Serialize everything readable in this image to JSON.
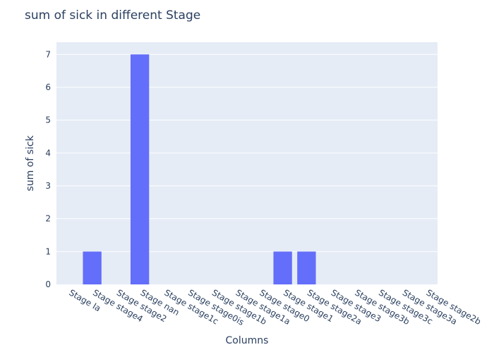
{
  "chart_data": {
    "type": "bar",
    "title": "sum of sick in different Stage",
    "xlabel": "Columns",
    "ylabel": "sum of sick",
    "categories": [
      "Stage Ia",
      "Stage stage4",
      "Stage stage2",
      "Stage nan",
      "Stage stage1c",
      "Stage stage0is",
      "Stage stage1b",
      "Stage stage1a",
      "Stage stage0",
      "Stage stage1",
      "Stage stage2a",
      "Stage stage3",
      "Stage stage3b",
      "Stage stage3c",
      "Stage stage3a",
      "Stage stage2b"
    ],
    "values": [
      0,
      1,
      0,
      7,
      0,
      0,
      0,
      0,
      0,
      1,
      1,
      0,
      0,
      0,
      0,
      0
    ],
    "ylim": [
      0,
      7.37
    ],
    "yticks": [
      0,
      1,
      2,
      3,
      4,
      5,
      6,
      7
    ],
    "bar_color": "#636efa",
    "plot_bg": "#e5ecf6",
    "grid_color": "#ffffff",
    "grid": true
  }
}
